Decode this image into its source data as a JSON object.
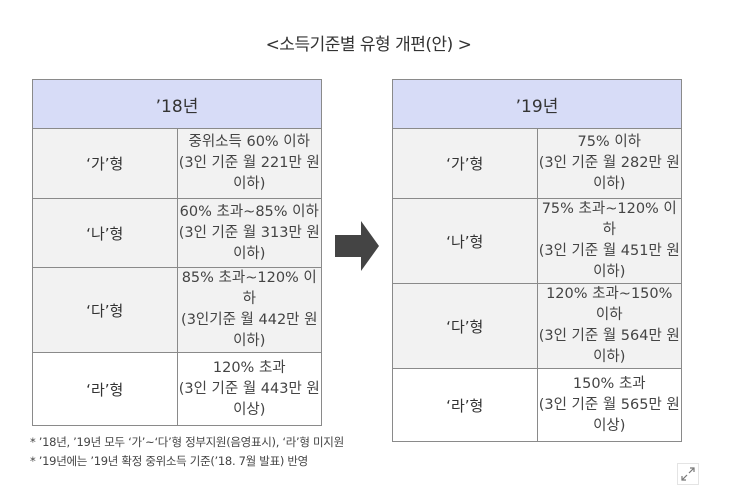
{
  "title": "<소득기준별 유형 개편(안) >",
  "left": {
    "header": "’18년",
    "rows": [
      {
        "type": "‘가’형",
        "line1": "중위소득 60% 이하",
        "line2": "(3인 기준 월 221만 원 이하)"
      },
      {
        "type": "‘나’형",
        "line1": "60% 초과~85% 이하",
        "line2": "(3인 기준 월 313만 원 이하)"
      },
      {
        "type": "‘다’형",
        "line1": "85% 초과~120% 이하",
        "line2": "(3인기준 월 442만 원 이하)"
      },
      {
        "type": "‘라’형",
        "line1": "120% 초과",
        "line2": "(3인 기준 월 443만 원 이상)"
      }
    ]
  },
  "right": {
    "header": "’19년",
    "rows": [
      {
        "type": "‘가’형",
        "line1": "75% 이하",
        "line2": "(3인 기준 월 282만 원 이하)"
      },
      {
        "type": "‘나’형",
        "line1": "75% 초과~120% 이하",
        "line2": "(3인 기준 월 451만 원 이하)"
      },
      {
        "type": "‘다’형",
        "line1": "120% 초과~150% 이하",
        "line2": "(3인 기준 월 564만 원 이하)"
      },
      {
        "type": "‘라’형",
        "line1": "150% 초과",
        "line2": "(3인 기준 월 565만 원 이상)"
      }
    ]
  },
  "notes": [
    "* ’18년, ’19년 모두 ‘가’~‘다’형 정부지원(음영표시), ‘라’형 미지원",
    "* ’19년에는 ’19년 확정 중위소득 기준(’18. 7월 발표) 반영"
  ],
  "icons": {
    "arrow": "right-arrow-icon",
    "expand": "expand-icon"
  },
  "colors": {
    "header_bg": "#d7dcf7",
    "shaded_row_bg": "#f2f2f2",
    "arrow": "#444444"
  }
}
